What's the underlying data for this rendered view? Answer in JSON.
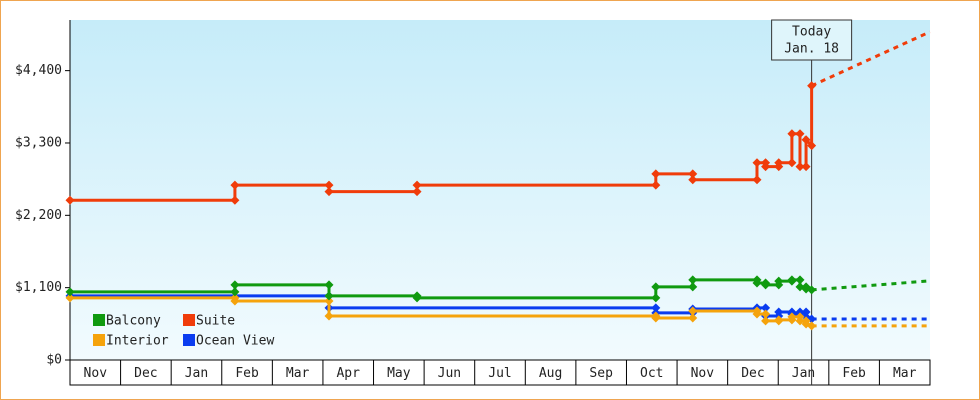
{
  "chart_data": {
    "type": "line",
    "xlim": [
      0,
      17
    ],
    "ylim": [
      0,
      5170
    ],
    "xticks": [
      {
        "value": 0.5,
        "label": "Nov"
      },
      {
        "value": 1.5,
        "label": "Dec"
      },
      {
        "value": 2.5,
        "label": "Jan"
      },
      {
        "value": 3.5,
        "label": "Feb"
      },
      {
        "value": 4.5,
        "label": "Mar"
      },
      {
        "value": 5.5,
        "label": "Apr"
      },
      {
        "value": 6.5,
        "label": "May"
      },
      {
        "value": 7.5,
        "label": "Jun"
      },
      {
        "value": 8.5,
        "label": "Jul"
      },
      {
        "value": 9.5,
        "label": "Aug"
      },
      {
        "value": 10.5,
        "label": "Sep"
      },
      {
        "value": 11.5,
        "label": "Oct"
      },
      {
        "value": 12.5,
        "label": "Nov"
      },
      {
        "value": 13.5,
        "label": "Dec"
      },
      {
        "value": 14.5,
        "label": "Jan"
      },
      {
        "value": 15.5,
        "label": "Feb"
      },
      {
        "value": 16.5,
        "label": "Mar"
      }
    ],
    "yticks": [
      {
        "value": 0,
        "label": "$0"
      },
      {
        "value": 1100,
        "label": "$1,100"
      },
      {
        "value": 2200,
        "label": "$2,200"
      },
      {
        "value": 3300,
        "label": "$3,300"
      },
      {
        "value": 4400,
        "label": "$4,400"
      }
    ],
    "today": {
      "x": 14.66,
      "label": [
        "Today",
        "Jan. 18"
      ]
    },
    "series": [
      {
        "name": "Balcony",
        "color": "#109a10",
        "x": [
          0,
          3.26,
          3.26,
          5.12,
          5.12,
          6.86,
          6.86,
          11.58,
          11.58,
          12.31,
          12.31,
          13.58,
          13.58,
          13.75,
          13.75,
          14.01,
          14.01,
          14.27,
          14.27,
          14.43,
          14.43,
          14.55,
          14.55,
          14.66
        ],
        "values": [
          1035,
          1035,
          1142,
          1142,
          975,
          975,
          944,
          944,
          1111,
          1111,
          1218,
          1218,
          1170,
          1170,
          1142,
          1142,
          1200,
          1200,
          1218,
          1218,
          1111,
          1111,
          1080,
          1066
        ],
        "forecast_x": [
          14.66,
          17
        ],
        "forecast_values": [
          1066,
          1203
        ]
      },
      {
        "name": "Suite",
        "color": "#f03c0a",
        "x": [
          0,
          3.26,
          3.26,
          5.12,
          5.12,
          6.86,
          6.86,
          11.58,
          11.58,
          12.31,
          12.31,
          13.58,
          13.58,
          13.75,
          13.75,
          14.01,
          14.01,
          14.27,
          14.27,
          14.43,
          14.43,
          14.55,
          14.55,
          14.66,
          14.66
        ],
        "values": [
          2430,
          2430,
          2660,
          2660,
          2560,
          2560,
          2660,
          2660,
          2830,
          2830,
          2740,
          2740,
          3000,
          3000,
          2940,
          2940,
          3000,
          3000,
          3440,
          3440,
          2940,
          2940,
          3350,
          3260,
          4170
        ],
        "forecast_x": [
          14.66,
          17
        ],
        "forecast_values": [
          4170,
          4990
        ]
      },
      {
        "name": "Interior",
        "color": "#f5a30c",
        "x": [
          0,
          3.26,
          3.26,
          5.12,
          5.12,
          11.58,
          11.58,
          12.31,
          12.31,
          13.58,
          13.58,
          13.75,
          13.75,
          14.01,
          14.01,
          14.27,
          14.27,
          14.43,
          14.43,
          14.55,
          14.55,
          14.66
        ],
        "values": [
          944,
          944,
          898,
          898,
          670,
          670,
          639,
          639,
          746,
          746,
          700,
          700,
          594,
          594,
          610,
          610,
          655,
          655,
          594,
          594,
          548,
          518
        ],
        "forecast_x": [
          14.66,
          17
        ],
        "forecast_values": [
          518,
          518
        ]
      },
      {
        "name": "Ocean View",
        "color": "#0a3cf0",
        "x": [
          0,
          5.12,
          5.12,
          11.58,
          11.58,
          12.31,
          12.31,
          13.58,
          13.58,
          13.75,
          13.75,
          14.01,
          14.01,
          14.27,
          14.27,
          14.43,
          14.43,
          14.55,
          14.55,
          14.66
        ],
        "values": [
          975,
          975,
          792,
          792,
          716,
          716,
          776,
          776,
          792,
          792,
          670,
          670,
          730,
          730,
          700,
          700,
          730,
          730,
          655,
          624
        ],
        "forecast_x": [
          14.66,
          17
        ],
        "forecast_values": [
          624,
          624
        ]
      }
    ]
  }
}
